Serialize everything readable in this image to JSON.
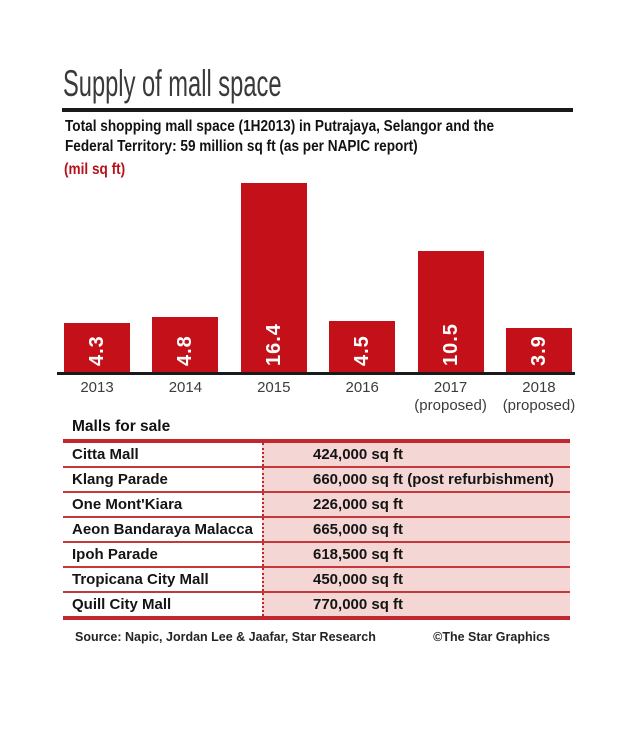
{
  "header": {
    "title": "Supply of mall space"
  },
  "intro": {
    "line1": "Total shopping mall space (1H2013) in Putrajaya, Selangor and the",
    "line2": "Federal Territory: 59 million sq ft (as per NAPIC report)",
    "unit_label": "(mil sq ft)"
  },
  "chart_data": {
    "type": "bar",
    "title": "Supply of mall space",
    "subtitle": "Total shopping mall space (1H2013) in Putrajaya, Selangor and the Federal Territory: 59 million sq ft (as per NAPIC report)",
    "ylabel": "(mil sq ft)",
    "xlabel": "",
    "categories": [
      "2013",
      "2014",
      "2015",
      "2016",
      "2017",
      "2018"
    ],
    "category_notes": [
      "",
      "",
      "",
      "",
      "(proposed)",
      "(proposed)"
    ],
    "values": [
      4.3,
      4.8,
      16.4,
      4.5,
      10.5,
      3.9
    ],
    "ylim": [
      0,
      16.4
    ],
    "grid": false,
    "legend": false,
    "bar_color": "#c41019",
    "value_label_color": "#ffffff",
    "axis_color": "#1a1a1a"
  },
  "table": {
    "header": "Malls for sale",
    "columns": [
      "mall",
      "size"
    ],
    "rows": [
      {
        "mall": "Citta Mall",
        "size": "424,000 sq ft"
      },
      {
        "mall": "Klang Parade",
        "size": "660,000 sq ft (post refurbishment)"
      },
      {
        "mall": "One Mont'Kiara",
        "size": "226,000 sq ft"
      },
      {
        "mall": "Aeon Bandaraya Malacca",
        "size": "665,000 sq ft"
      },
      {
        "mall": "Ipoh Parade",
        "size": "618,500 sq ft"
      },
      {
        "mall": "Tropicana City Mall",
        "size": "450,000 sq ft"
      },
      {
        "mall": "Quill City Mall",
        "size": "770,000 sq ft"
      }
    ]
  },
  "footer": {
    "source": "Source: Napic, Jordan Lee & Jaafar, Star Research",
    "credit": "©The Star Graphics"
  },
  "colors": {
    "accent_red": "#c41019",
    "table_border_red": "#c1272d",
    "row_line_red": "#c5393a",
    "cell_pink": "#f4d6d4",
    "rule_black": "#1a1a1a"
  }
}
